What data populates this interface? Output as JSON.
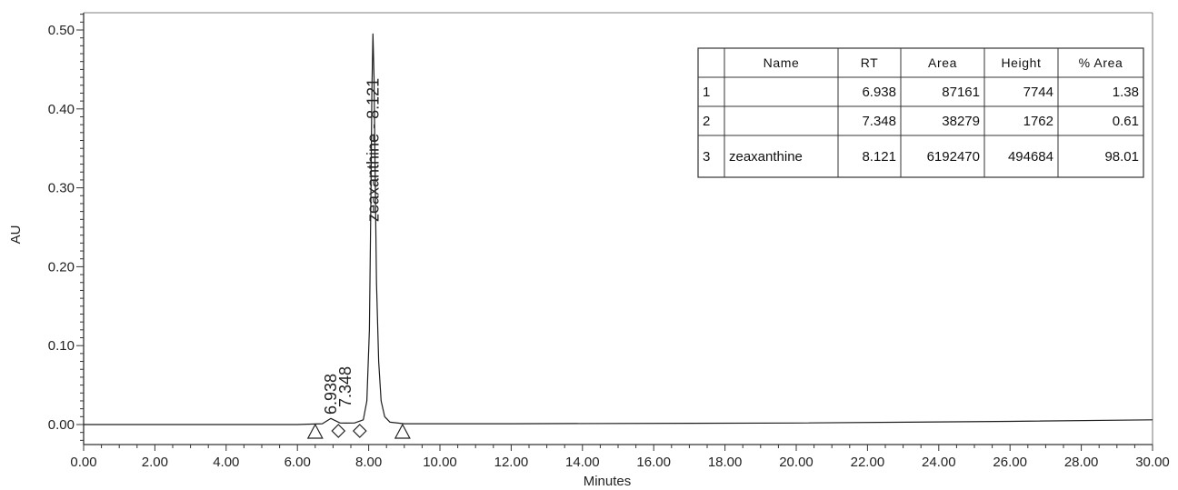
{
  "chart_data": {
    "type": "line",
    "title": "",
    "xlabel": "Minutes",
    "ylabel": "AU",
    "xlim": [
      0,
      30
    ],
    "ylim": [
      -0.02,
      0.52
    ],
    "x_ticks": [
      "0.00",
      "2.00",
      "4.00",
      "6.00",
      "8.00",
      "10.00",
      "12.00",
      "14.00",
      "16.00",
      "18.00",
      "20.00",
      "22.00",
      "24.00",
      "26.00",
      "28.00",
      "30.00"
    ],
    "y_ticks": [
      "0.00",
      "0.10",
      "0.20",
      "0.30",
      "0.40",
      "0.50"
    ],
    "peaks": [
      {
        "label": "6.938",
        "rt": 6.938,
        "height": 0.0077
      },
      {
        "label": "7.348",
        "rt": 7.348,
        "height": 0.0018
      },
      {
        "label": "zeaxanthine - 8.121",
        "rt": 8.121,
        "height": 0.495
      }
    ],
    "integration_markers": [
      {
        "shape": "triangle",
        "x": 6.5
      },
      {
        "shape": "diamond",
        "x": 7.15
      },
      {
        "shape": "diamond",
        "x": 7.75
      },
      {
        "shape": "triangle",
        "x": 8.95
      }
    ],
    "series": [
      {
        "x": [
          0,
          6.0,
          6.7,
          6.938,
          7.2,
          7.348,
          7.6,
          7.85,
          7.95,
          8.02,
          8.06,
          8.09,
          8.121,
          8.15,
          8.18,
          8.22,
          8.28,
          8.35,
          8.45,
          8.6,
          9.0,
          12,
          20,
          26,
          30
        ],
        "y": [
          0,
          0,
          0.001,
          0.0077,
          0.002,
          0.0018,
          0.002,
          0.006,
          0.03,
          0.12,
          0.28,
          0.42,
          0.495,
          0.44,
          0.32,
          0.18,
          0.08,
          0.03,
          0.01,
          0.003,
          0.001,
          0.001,
          0.002,
          0.004,
          0.006
        ]
      }
    ]
  },
  "peak_table": {
    "headers": [
      "",
      "Name",
      "RT",
      "Area",
      "Height",
      "% Area"
    ],
    "rows": [
      [
        "1",
        "",
        "6.938",
        "87161",
        "7744",
        "1.38"
      ],
      [
        "2",
        "",
        "7.348",
        "38279",
        "1762",
        "0.61"
      ],
      [
        "3",
        "zeaxanthine",
        "8.121",
        "6192470",
        "494684",
        "98.01"
      ]
    ]
  }
}
